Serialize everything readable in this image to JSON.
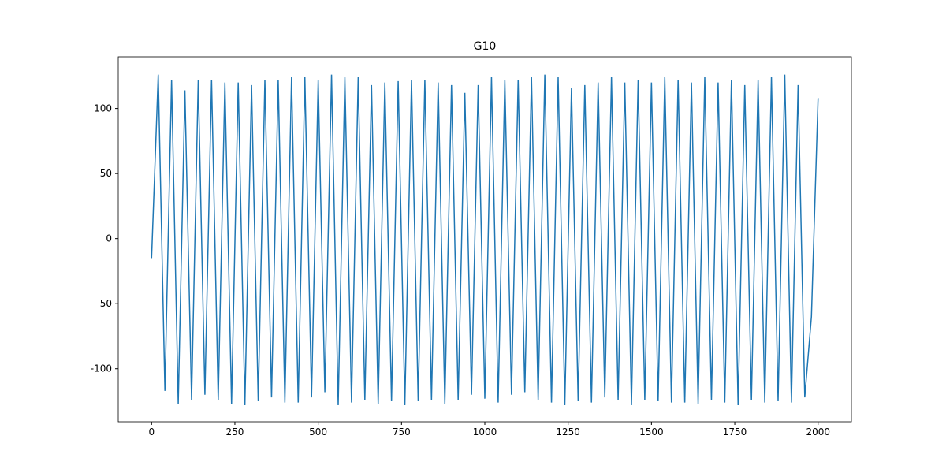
{
  "chart_data": {
    "type": "line",
    "title": "G10",
    "x": [
      0,
      20,
      40,
      60,
      80,
      100,
      120,
      140,
      160,
      180,
      200,
      220,
      240,
      260,
      280,
      300,
      320,
      340,
      360,
      380,
      400,
      420,
      440,
      460,
      480,
      500,
      520,
      540,
      560,
      580,
      600,
      620,
      640,
      660,
      680,
      700,
      720,
      740,
      760,
      780,
      800,
      820,
      840,
      860,
      880,
      900,
      920,
      940,
      960,
      980,
      1000,
      1020,
      1040,
      1060,
      1080,
      1100,
      1120,
      1140,
      1160,
      1180,
      1200,
      1220,
      1240,
      1260,
      1280,
      1300,
      1320,
      1340,
      1360,
      1380,
      1400,
      1420,
      1440,
      1460,
      1480,
      1500,
      1520,
      1540,
      1560,
      1580,
      1600,
      1620,
      1640,
      1660,
      1680,
      1700,
      1720,
      1740,
      1760,
      1780,
      1800,
      1820,
      1840,
      1860,
      1880,
      1900,
      1920,
      1940,
      1960,
      1980,
      2000
    ],
    "series": [
      {
        "color": "#1f77b4",
        "values": [
          -15,
          126,
          -117,
          122,
          -127,
          114,
          -124,
          122,
          -120,
          122,
          -124,
          120,
          -127,
          120,
          -128,
          118,
          -125,
          122,
          -122,
          122,
          -126,
          124,
          -126,
          124,
          -122,
          122,
          -118,
          126,
          -128,
          124,
          -126,
          124,
          -124,
          118,
          -127,
          120,
          -125,
          121,
          -128,
          122,
          -125,
          122,
          -124,
          120,
          -127,
          118,
          -124,
          112,
          -120,
          118,
          -123,
          124,
          -126,
          122,
          -120,
          122,
          -118,
          124,
          -124,
          126,
          -126,
          124,
          -128,
          116,
          -125,
          118,
          -126,
          120,
          -122,
          124,
          -124,
          120,
          -128,
          122,
          -124,
          120,
          -125,
          124,
          -126,
          122,
          -126,
          120,
          -127,
          124,
          -124,
          120,
          -126,
          122,
          -128,
          118,
          -124,
          122,
          -126,
          124,
          -125,
          126,
          -126,
          118,
          -122,
          -60,
          108
        ]
      }
    ],
    "xlim": [
      -100,
      2100
    ],
    "ylim": [
      -140.75,
      139.75
    ],
    "xticks": [
      0,
      250,
      500,
      750,
      1000,
      1250,
      1500,
      1750,
      2000
    ],
    "yticks": [
      -100,
      -50,
      0,
      50,
      100
    ]
  }
}
